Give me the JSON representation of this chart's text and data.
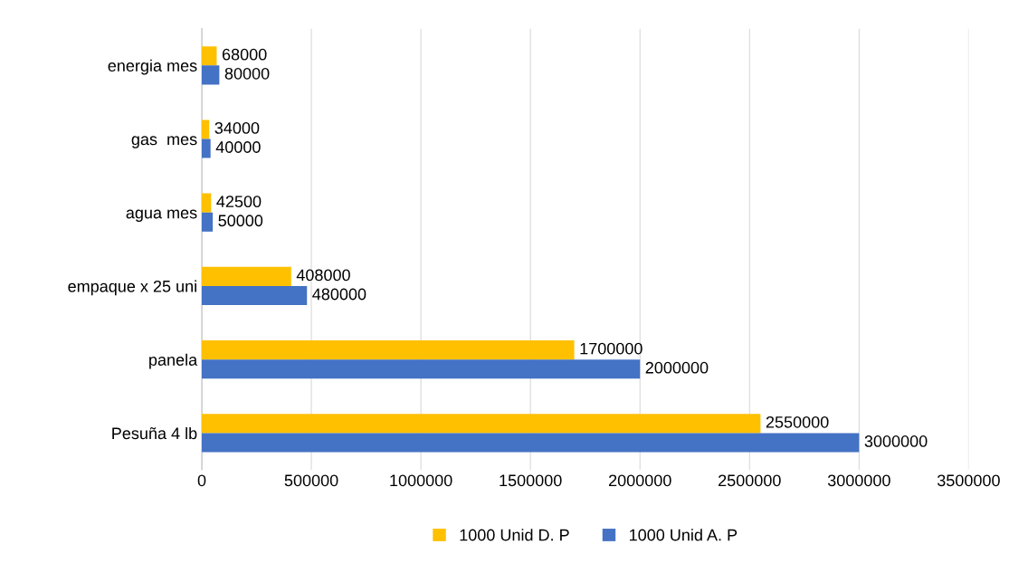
{
  "chart_data": {
    "type": "bar",
    "orientation": "horizontal",
    "categories": [
      "energia mes",
      "gas  mes",
      "agua mes",
      "empaque x 25 uni",
      "panela",
      "Pesuña 4 lb"
    ],
    "series": [
      {
        "name": "1000 Unid D. P",
        "color": "#ffc000",
        "values": [
          68000,
          34000,
          42500,
          408000,
          1700000,
          2550000
        ]
      },
      {
        "name": "1000 Unid A. P",
        "color": "#4472c4",
        "values": [
          80000,
          40000,
          50000,
          480000,
          2000000,
          3000000
        ]
      }
    ],
    "xlim": [
      0,
      3500000
    ],
    "xticks": [
      0,
      500000,
      1000000,
      1500000,
      2000000,
      2500000,
      3000000,
      3500000
    ],
    "grid": "x",
    "legend": "bottom",
    "data_labels": true
  }
}
